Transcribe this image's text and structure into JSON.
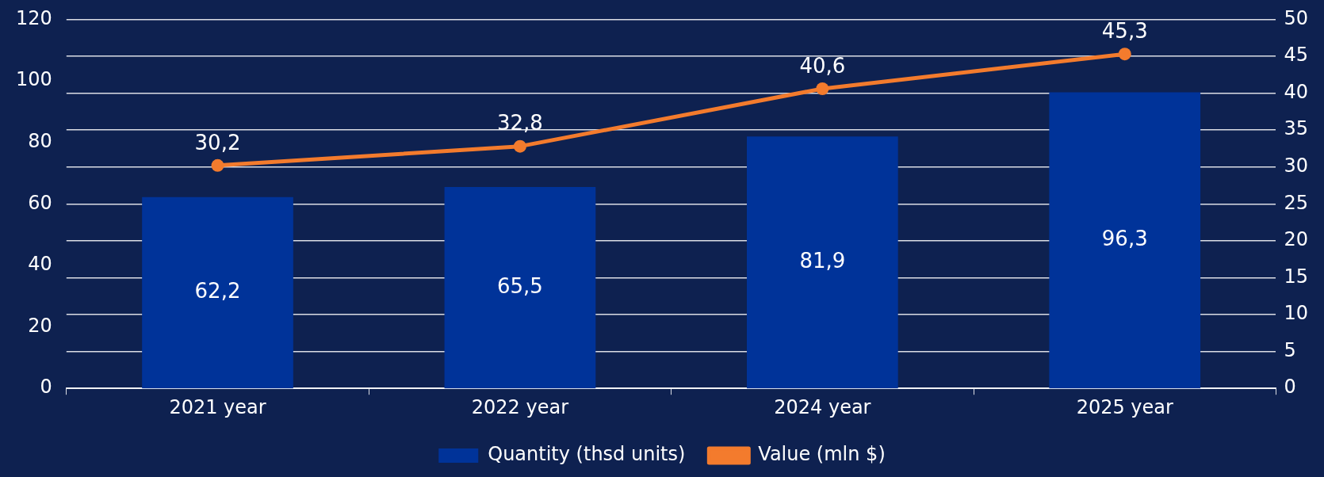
{
  "chart_data": {
    "type": "bar",
    "categories": [
      "2021 year",
      "2022 year",
      "2024 year",
      "2025 year"
    ],
    "series": [
      {
        "name": "Quantity (thsd units)",
        "color": "#003399",
        "values": [
          62.2,
          65.5,
          81.9,
          96.3
        ],
        "value_labels": [
          "62,2",
          "65,5",
          "81,9",
          "96,3"
        ]
      },
      {
        "name": "Value (mln $)",
        "type": "line",
        "axis": "y2",
        "color": "#f37b2d",
        "marker": "circle",
        "values": [
          30.2,
          32.8,
          40.6,
          45.3
        ],
        "value_labels": [
          "30,2",
          "32,8",
          "40,6",
          "45,3"
        ]
      }
    ],
    "ylim": [
      0,
      120
    ],
    "yticks": [
      0,
      20,
      40,
      60,
      80,
      100,
      120
    ],
    "y2lim": [
      0,
      50
    ],
    "y2ticks": [
      0,
      5,
      10,
      15,
      20,
      25,
      30,
      35,
      40,
      45,
      50
    ],
    "grid": "y",
    "legend": "bottom"
  }
}
